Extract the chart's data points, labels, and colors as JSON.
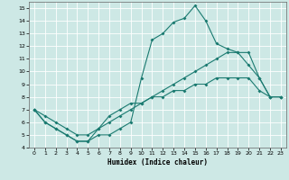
{
  "xlabel": "Humidex (Indice chaleur)",
  "xlim": [
    -0.5,
    23.5
  ],
  "ylim": [
    4,
    15.5
  ],
  "yticks": [
    4,
    5,
    6,
    7,
    8,
    9,
    10,
    11,
    12,
    13,
    14,
    15
  ],
  "xticks": [
    0,
    1,
    2,
    3,
    4,
    5,
    6,
    7,
    8,
    9,
    10,
    11,
    12,
    13,
    14,
    15,
    16,
    17,
    18,
    19,
    20,
    21,
    22,
    23
  ],
  "bg_color": "#cde8e5",
  "line_color": "#1a7a70",
  "grid_color": "#ffffff",
  "line1_x": [
    0,
    1,
    2,
    3,
    4,
    5,
    6,
    7,
    8,
    9,
    10,
    11,
    12,
    13,
    14,
    15,
    16,
    17,
    18,
    19,
    20,
    21,
    22,
    23
  ],
  "line1_y": [
    7.0,
    6.0,
    5.5,
    5.0,
    4.5,
    4.5,
    5.0,
    5.0,
    5.5,
    6.0,
    9.5,
    12.5,
    13.0,
    13.9,
    14.2,
    15.2,
    14.0,
    12.2,
    11.8,
    11.5,
    10.5,
    9.5,
    8.0,
    8.0
  ],
  "line2_x": [
    0,
    1,
    2,
    3,
    4,
    5,
    6,
    7,
    8,
    9,
    10,
    11,
    12,
    13,
    14,
    15,
    16,
    17,
    18,
    19,
    20,
    21,
    22,
    23
  ],
  "line2_y": [
    7.0,
    6.0,
    5.5,
    5.0,
    4.5,
    4.5,
    5.5,
    6.0,
    6.5,
    7.0,
    7.5,
    8.0,
    8.5,
    9.0,
    9.5,
    10.0,
    10.5,
    11.0,
    11.5,
    11.5,
    11.5,
    9.5,
    8.0,
    8.0
  ],
  "line3_x": [
    0,
    1,
    2,
    3,
    4,
    5,
    6,
    7,
    8,
    9,
    10,
    11,
    12,
    13,
    14,
    15,
    16,
    17,
    18,
    19,
    20,
    21,
    22,
    23
  ],
  "line3_y": [
    7.0,
    6.5,
    6.0,
    5.5,
    5.0,
    5.0,
    5.5,
    6.5,
    7.0,
    7.5,
    7.5,
    8.0,
    8.0,
    8.5,
    8.5,
    9.0,
    9.0,
    9.5,
    9.5,
    9.5,
    9.5,
    8.5,
    8.0,
    8.0
  ]
}
